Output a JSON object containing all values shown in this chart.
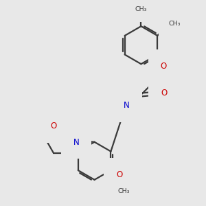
{
  "background_color": "#e8e8e8",
  "bond_color": "#3a3a3a",
  "bond_width": 1.6,
  "atom_colors": {
    "O": "#cc0000",
    "N": "#0000cc",
    "C": "#3a3a3a",
    "H": "#707070"
  },
  "figsize": [
    3.0,
    3.0
  ],
  "dpi": 100,
  "xlim": [
    -3.0,
    3.2
  ],
  "ylim": [
    -3.5,
    3.2
  ]
}
